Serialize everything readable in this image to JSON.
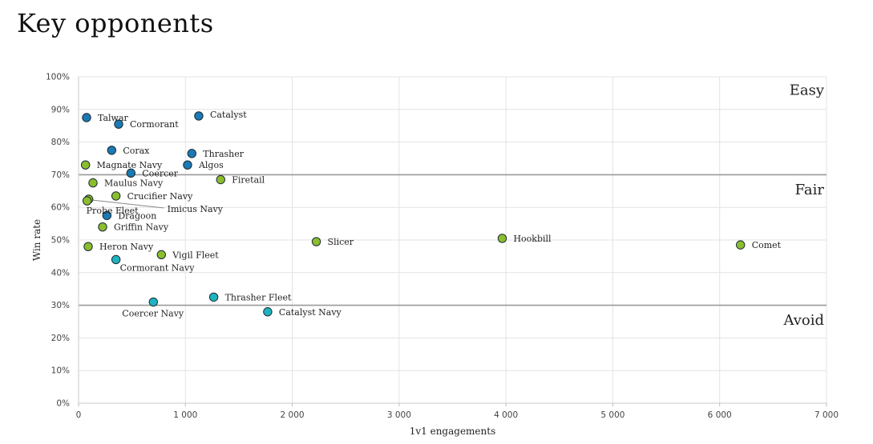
{
  "page": {
    "title": "Key opponents"
  },
  "chart_data": {
    "type": "scatter",
    "title": "",
    "xlabel": "1v1 engagements",
    "ylabel": "Win rate",
    "xlim": [
      0,
      7000
    ],
    "ylim": [
      0,
      100
    ],
    "x_ticks": [
      0,
      1000,
      2000,
      3000,
      4000,
      5000,
      6000,
      7000
    ],
    "x_tick_labels": [
      "0",
      "1 000",
      "2 000",
      "3 000",
      "4 000",
      "5 000",
      "6 000",
      "7 000"
    ],
    "y_ticks": [
      0,
      10,
      20,
      30,
      40,
      50,
      60,
      70,
      80,
      90,
      100
    ],
    "y_tick_labels": [
      "0%",
      "10%",
      "20%",
      "30%",
      "40%",
      "50%",
      "60%",
      "70%",
      "80%",
      "90%",
      "100%"
    ],
    "grid": true,
    "colors": {
      "Easy": "#1b7ab3",
      "Fair": "#8bbd2d",
      "Avoid": "#1fb3bf"
    },
    "thresholds": [
      {
        "value": 70,
        "color": "#9a9a9a"
      },
      {
        "value": 30,
        "color": "#9a9a9a"
      }
    ],
    "zones": [
      {
        "label": "Easy",
        "y": 96
      },
      {
        "label": "Fair",
        "y": 65.5
      },
      {
        "label": "Avoid",
        "y": 25.5
      }
    ],
    "points": [
      {
        "label": "Talwar",
        "x": 75,
        "y": 87.5,
        "group": "Easy"
      },
      {
        "label": "Cormorant",
        "x": 375,
        "y": 85.5,
        "group": "Easy"
      },
      {
        "label": "Catalyst",
        "x": 1125,
        "y": 88,
        "group": "Easy"
      },
      {
        "label": "Corax",
        "x": 310,
        "y": 77.5,
        "group": "Easy"
      },
      {
        "label": "Thrasher",
        "x": 1060,
        "y": 76.5,
        "group": "Easy"
      },
      {
        "label": "Algos",
        "x": 1020,
        "y": 73,
        "group": "Easy"
      },
      {
        "label": "Coercer",
        "x": 490,
        "y": 70.5,
        "group": "Easy"
      },
      {
        "label": "Magnate Navy",
        "x": 65,
        "y": 73,
        "group": "Fair"
      },
      {
        "label": "Maulus Navy",
        "x": 135,
        "y": 67.5,
        "group": "Fair"
      },
      {
        "label": "Firetail",
        "x": 1330,
        "y": 68.5,
        "group": "Fair"
      },
      {
        "label": "Crucifier Navy",
        "x": 350,
        "y": 63.5,
        "group": "Fair"
      },
      {
        "label": "Imicus Navy",
        "x": 95,
        "y": 62.5,
        "group": "Fair"
      },
      {
        "label": "Probe Fleet",
        "x": 80,
        "y": 62,
        "group": "Fair"
      },
      {
        "label": "Dragoon",
        "x": 265,
        "y": 57.5,
        "group": "Easy"
      },
      {
        "label": "Griffin Navy",
        "x": 225,
        "y": 54,
        "group": "Fair"
      },
      {
        "label": "Slicer",
        "x": 2225,
        "y": 49.5,
        "group": "Fair"
      },
      {
        "label": "Hookbill",
        "x": 3965,
        "y": 50.5,
        "group": "Fair"
      },
      {
        "label": "Comet",
        "x": 6195,
        "y": 48.5,
        "group": "Fair"
      },
      {
        "label": "Heron Navy",
        "x": 90,
        "y": 48,
        "group": "Fair"
      },
      {
        "label": "Vigil Fleet",
        "x": 775,
        "y": 45.5,
        "group": "Fair"
      },
      {
        "label": "Cormorant Navy",
        "x": 350,
        "y": 44,
        "group": "Avoid"
      },
      {
        "label": "Thrasher Fleet",
        "x": 1265,
        "y": 32.5,
        "group": "Avoid"
      },
      {
        "label": "Coercer Navy",
        "x": 700,
        "y": 31,
        "group": "Avoid"
      },
      {
        "label": "Catalyst Navy",
        "x": 1770,
        "y": 28,
        "group": "Avoid"
      }
    ]
  }
}
